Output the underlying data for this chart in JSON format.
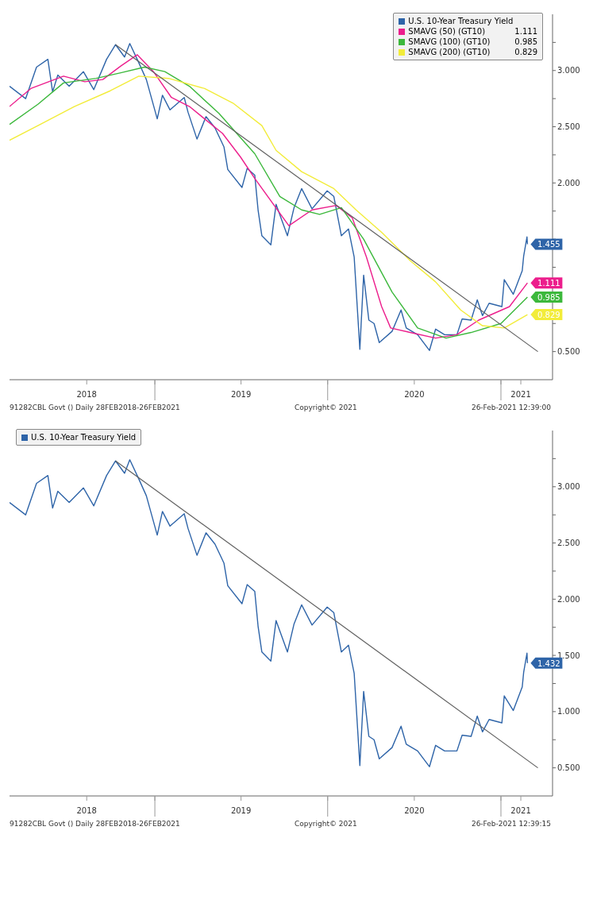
{
  "chart_data": [
    {
      "type": "line",
      "legend": "top right",
      "marker": "none",
      "line_style": "solid",
      "xlim": [
        "2018-02-28",
        "2021-04-20"
      ],
      "xticks": [
        {
          "value": "2018-08-10",
          "label": "2018"
        },
        {
          "value": "2019-01-01",
          "label": null
        },
        {
          "value": "2019-07-02",
          "label": "2019"
        },
        {
          "value": "2020-01-01",
          "label": null
        },
        {
          "value": "2020-07-02",
          "label": "2020"
        },
        {
          "value": "2021-01-01",
          "label": null
        },
        {
          "value": "2021-02-12",
          "label": "2021"
        }
      ],
      "ylim": [
        0.25,
        3.5
      ],
      "yticks": [
        {
          "value": 0.5,
          "label": "0.500"
        },
        {
          "value": 0.75,
          "label": null
        },
        {
          "value": 1.0,
          "label": null
        },
        {
          "value": 1.25,
          "label": null
        },
        {
          "value": 1.5,
          "label": null
        },
        {
          "value": 1.75,
          "label": null
        },
        {
          "value": 2.0,
          "label": "2.000"
        },
        {
          "value": 2.25,
          "label": null
        },
        {
          "value": 2.5,
          "label": "2.500"
        },
        {
          "value": 2.75,
          "label": null
        },
        {
          "value": 3.0,
          "label": "3.000"
        },
        {
          "value": 3.25,
          "label": null
        }
      ],
      "series": [
        {
          "name": "U.S. 10-Year Treasury Yield",
          "color": "#2e64a8",
          "x": [
            "2018-02-28",
            "2018-04-03",
            "2018-04-26",
            "2018-05-20",
            "2018-05-30",
            "2018-06-10",
            "2018-07-04",
            "2018-08-03",
            "2018-08-25",
            "2018-09-21",
            "2018-10-10",
            "2018-10-29",
            "2018-11-09",
            "2018-11-28",
            "2018-12-14",
            "2019-01-06",
            "2019-01-17",
            "2019-02-02",
            "2019-03-04",
            "2019-03-12",
            "2019-03-31",
            "2019-04-19",
            "2019-05-08",
            "2019-05-27",
            "2019-06-04",
            "2019-07-04",
            "2019-07-15",
            "2019-07-31",
            "2019-08-07",
            "2019-08-15",
            "2019-09-03",
            "2019-09-14",
            "2019-10-08",
            "2019-10-22",
            "2019-11-07",
            "2019-11-29",
            "2019-12-31",
            "2020-01-14",
            "2020-01-30",
            "2020-02-14",
            "2020-02-26",
            "2020-03-09",
            "2020-03-17",
            "2020-03-28",
            "2020-04-08",
            "2020-04-19",
            "2020-05-16",
            "2020-06-04",
            "2020-06-15",
            "2020-07-09",
            "2020-08-03",
            "2020-08-16",
            "2020-09-04",
            "2020-09-30",
            "2020-10-11",
            "2020-10-30",
            "2020-11-12",
            "2020-11-23",
            "2020-12-07",
            "2021-01-03",
            "2021-01-08",
            "2021-01-27",
            "2021-02-15",
            "2021-02-18",
            "2021-02-25",
            "2021-02-26"
          ],
          "values": [
            2.86,
            2.75,
            3.03,
            3.1,
            2.81,
            2.96,
            2.86,
            2.99,
            2.83,
            3.1,
            3.23,
            3.12,
            3.24,
            3.07,
            2.92,
            2.57,
            2.78,
            2.65,
            2.76,
            2.63,
            2.39,
            2.59,
            2.49,
            2.32,
            2.12,
            1.96,
            2.13,
            2.07,
            1.76,
            1.53,
            1.45,
            1.81,
            1.53,
            1.78,
            1.95,
            1.77,
            1.93,
            1.88,
            1.53,
            1.59,
            1.34,
            0.52,
            1.18,
            0.78,
            0.75,
            0.58,
            0.68,
            0.87,
            0.71,
            0.65,
            0.51,
            0.7,
            0.65,
            0.65,
            0.79,
            0.78,
            0.96,
            0.82,
            0.93,
            0.9,
            1.14,
            1.01,
            1.22,
            1.35,
            1.52,
            1.455
          ],
          "value_labels": [
            null,
            null,
            null,
            null,
            null,
            null,
            null,
            null,
            null,
            null,
            null,
            null,
            null,
            null,
            null,
            null,
            null,
            null,
            null,
            null,
            null,
            null,
            null,
            null,
            null,
            null,
            null,
            null,
            null,
            null,
            null,
            null,
            null,
            null,
            null,
            null,
            null,
            null,
            null,
            null,
            null,
            null,
            null,
            null,
            null,
            null,
            null,
            null,
            null,
            null,
            null,
            null,
            null,
            null,
            null,
            null,
            null,
            null,
            null,
            null,
            null,
            null,
            null,
            null,
            null,
            "1.455"
          ]
        },
        {
          "name": "SMAVG (50) (GT10)",
          "color": "#ec1e8c",
          "x": [
            "2018-02-28",
            "2018-04-14",
            "2018-06-22",
            "2018-08-06",
            "2018-09-13",
            "2018-10-21",
            "2018-11-25",
            "2018-12-29",
            "2019-02-05",
            "2019-03-15",
            "2019-04-16",
            "2019-05-24",
            "2019-07-01",
            "2019-07-31",
            "2019-10-11",
            "2019-11-29",
            "2020-01-19",
            "2020-02-22",
            "2020-03-23",
            "2020-04-24",
            "2020-05-13",
            "2020-06-23",
            "2020-08-16",
            "2020-09-30",
            "2020-11-15",
            "2021-01-19",
            "2021-02-26"
          ],
          "values": [
            2.68,
            2.84,
            2.95,
            2.9,
            2.92,
            3.04,
            3.14,
            2.99,
            2.76,
            2.68,
            2.57,
            2.44,
            2.23,
            2.04,
            1.62,
            1.76,
            1.8,
            1.69,
            1.34,
            0.9,
            0.71,
            0.67,
            0.62,
            0.65,
            0.78,
            0.9,
            1.111
          ],
          "value_labels": [
            null,
            null,
            null,
            null,
            null,
            null,
            null,
            null,
            null,
            null,
            null,
            null,
            null,
            null,
            null,
            null,
            null,
            null,
            null,
            null,
            null,
            null,
            null,
            null,
            null,
            null,
            "1.111"
          ]
        },
        {
          "name": "SMAVG (100) (GT10)",
          "color": "#3cb83c",
          "x": [
            "2018-02-28",
            "2018-04-29",
            "2018-06-22",
            "2018-08-30",
            "2018-10-21",
            "2018-12-10",
            "2019-01-22",
            "2019-03-15",
            "2019-05-16",
            "2019-07-31",
            "2019-09-22",
            "2019-11-07",
            "2019-12-15",
            "2020-01-30",
            "2020-03-17",
            "2020-05-16",
            "2020-07-09",
            "2020-09-07",
            "2020-10-30",
            "2021-01-01",
            "2021-02-26"
          ],
          "values": [
            2.52,
            2.7,
            2.89,
            2.93,
            2.98,
            3.03,
            2.99,
            2.86,
            2.62,
            2.26,
            1.88,
            1.76,
            1.72,
            1.78,
            1.5,
            1.03,
            0.71,
            0.62,
            0.67,
            0.75,
            0.985
          ],
          "value_labels": [
            null,
            null,
            null,
            null,
            null,
            null,
            null,
            null,
            null,
            null,
            null,
            null,
            null,
            null,
            null,
            null,
            null,
            null,
            null,
            null,
            "0.985"
          ]
        },
        {
          "name": "SMAVG (200) (GT10)",
          "color": "#f2ec3a",
          "x": [
            "2018-02-28",
            "2018-04-29",
            "2018-07-15",
            "2018-09-29",
            "2018-11-28",
            "2019-01-30",
            "2019-04-16",
            "2019-06-15",
            "2019-08-15",
            "2019-09-14",
            "2019-11-07",
            "2020-01-14",
            "2020-03-01",
            "2020-04-24",
            "2020-06-23",
            "2020-08-16",
            "2020-10-08",
            "2020-11-23",
            "2021-01-08",
            "2021-02-26"
          ],
          "values": [
            2.38,
            2.51,
            2.68,
            2.82,
            2.95,
            2.93,
            2.84,
            2.71,
            2.51,
            2.29,
            2.1,
            1.95,
            1.76,
            1.56,
            1.31,
            1.12,
            0.87,
            0.73,
            0.71,
            0.829
          ],
          "value_labels": [
            null,
            null,
            null,
            null,
            null,
            null,
            null,
            null,
            null,
            null,
            null,
            null,
            null,
            null,
            null,
            null,
            null,
            null,
            null,
            "0.829"
          ]
        },
        {
          "type": "line",
          "color": "#606060",
          "x": [
            "2018-10-10",
            "2021-03-20"
          ],
          "values": [
            3.23,
            0.5
          ]
        }
      ],
      "annotations": [
        "91282CBL Govt () Daily 28FEB2018-26FEB2021",
        "Copyright© 2021",
        "26-Feb-2021 12:39:00"
      ]
    },
    {
      "type": "line",
      "legend": "top left",
      "marker": "none",
      "line_style": "solid",
      "xlim": [
        "2018-02-28",
        "2021-04-20"
      ],
      "xticks": [
        {
          "value": "2018-08-10",
          "label": "2018"
        },
        {
          "value": "2019-01-01",
          "label": null
        },
        {
          "value": "2019-07-02",
          "label": "2019"
        },
        {
          "value": "2020-01-01",
          "label": null
        },
        {
          "value": "2020-07-02",
          "label": "2020"
        },
        {
          "value": "2021-01-01",
          "label": null
        },
        {
          "value": "2021-02-12",
          "label": "2021"
        }
      ],
      "ylim": [
        0.25,
        3.5
      ],
      "yticks": [
        {
          "value": 0.5,
          "label": "0.500"
        },
        {
          "value": 0.75,
          "label": null
        },
        {
          "value": 1.0,
          "label": "1.000"
        },
        {
          "value": 1.25,
          "label": null
        },
        {
          "value": 1.5,
          "label": "1.500"
        },
        {
          "value": 1.75,
          "label": null
        },
        {
          "value": 2.0,
          "label": "2.000"
        },
        {
          "value": 2.25,
          "label": null
        },
        {
          "value": 2.5,
          "label": "2.500"
        },
        {
          "value": 2.75,
          "label": null
        },
        {
          "value": 3.0,
          "label": "3.000"
        },
        {
          "value": 3.25,
          "label": null
        }
      ],
      "series": [
        {
          "name": "U.S. 10-Year Treasury Yield",
          "color": "#2e64a8",
          "x": [
            "2018-02-28",
            "2018-04-03",
            "2018-04-26",
            "2018-05-20",
            "2018-05-30",
            "2018-06-10",
            "2018-07-04",
            "2018-08-03",
            "2018-08-25",
            "2018-09-21",
            "2018-10-10",
            "2018-10-29",
            "2018-11-09",
            "2018-11-28",
            "2018-12-14",
            "2019-01-06",
            "2019-01-17",
            "2019-02-02",
            "2019-03-04",
            "2019-03-12",
            "2019-03-31",
            "2019-04-19",
            "2019-05-08",
            "2019-05-27",
            "2019-06-04",
            "2019-07-04",
            "2019-07-15",
            "2019-07-31",
            "2019-08-07",
            "2019-08-15",
            "2019-09-03",
            "2019-09-14",
            "2019-10-08",
            "2019-10-22",
            "2019-11-07",
            "2019-11-29",
            "2019-12-31",
            "2020-01-14",
            "2020-01-30",
            "2020-02-14",
            "2020-02-26",
            "2020-03-09",
            "2020-03-17",
            "2020-03-28",
            "2020-04-08",
            "2020-04-19",
            "2020-05-16",
            "2020-06-04",
            "2020-06-15",
            "2020-07-09",
            "2020-08-03",
            "2020-08-16",
            "2020-09-04",
            "2020-09-30",
            "2020-10-11",
            "2020-10-30",
            "2020-11-12",
            "2020-11-23",
            "2020-12-07",
            "2021-01-03",
            "2021-01-08",
            "2021-01-27",
            "2021-02-15",
            "2021-02-18",
            "2021-02-25",
            "2021-02-26"
          ],
          "values": [
            2.86,
            2.75,
            3.03,
            3.1,
            2.81,
            2.96,
            2.86,
            2.99,
            2.83,
            3.1,
            3.23,
            3.12,
            3.24,
            3.07,
            2.92,
            2.57,
            2.78,
            2.65,
            2.76,
            2.63,
            2.39,
            2.59,
            2.49,
            2.32,
            2.12,
            1.96,
            2.13,
            2.07,
            1.76,
            1.53,
            1.45,
            1.81,
            1.53,
            1.78,
            1.95,
            1.77,
            1.93,
            1.88,
            1.53,
            1.59,
            1.34,
            0.52,
            1.18,
            0.78,
            0.75,
            0.58,
            0.68,
            0.87,
            0.71,
            0.65,
            0.51,
            0.7,
            0.65,
            0.65,
            0.79,
            0.78,
            0.96,
            0.82,
            0.93,
            0.9,
            1.14,
            1.01,
            1.22,
            1.35,
            1.52,
            1.432
          ],
          "value_labels": [
            null,
            null,
            null,
            null,
            null,
            null,
            null,
            null,
            null,
            null,
            null,
            null,
            null,
            null,
            null,
            null,
            null,
            null,
            null,
            null,
            null,
            null,
            null,
            null,
            null,
            null,
            null,
            null,
            null,
            null,
            null,
            null,
            null,
            null,
            null,
            null,
            null,
            null,
            null,
            null,
            null,
            null,
            null,
            null,
            null,
            null,
            null,
            null,
            null,
            null,
            null,
            null,
            null,
            null,
            null,
            null,
            null,
            null,
            null,
            null,
            null,
            null,
            null,
            null,
            null,
            "1.432"
          ]
        },
        {
          "type": "line",
          "color": "#606060",
          "x": [
            "2018-10-10",
            "2021-03-20"
          ],
          "values": [
            3.23,
            0.5
          ]
        }
      ],
      "annotations": [
        "91282CBL Govt () Daily 28FEB2018-26FEB2021",
        "Copyright© 2021",
        "26-Feb-2021 12:39:15"
      ]
    }
  ]
}
